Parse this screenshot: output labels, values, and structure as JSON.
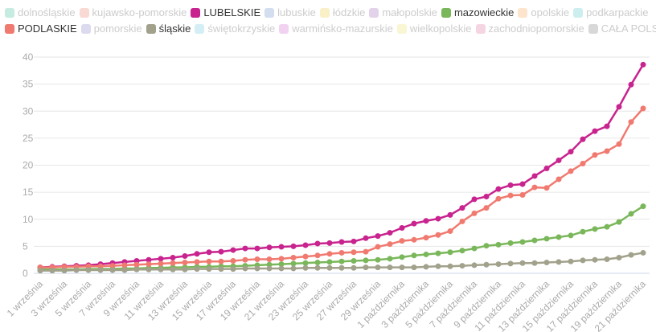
{
  "chart_data": {
    "type": "line",
    "categories": [
      "1 września",
      null,
      "3 września",
      null,
      "5 września",
      null,
      "7 września",
      null,
      "9 września",
      null,
      "11 września",
      null,
      "13 września",
      null,
      "15 września",
      null,
      "17 września",
      null,
      "19 września",
      null,
      "21 września",
      null,
      "23 września",
      null,
      "25 września",
      null,
      "27 września",
      null,
      "29 września",
      null,
      "1 października",
      null,
      "3 października",
      null,
      "5 października",
      null,
      "7 października",
      null,
      "9 października",
      null,
      "11 października",
      null,
      "13 października",
      null,
      "15 października",
      null,
      "17 października",
      null,
      "19 października",
      null,
      "21 października"
    ],
    "ylim": [
      0,
      40
    ],
    "yticks": [
      0,
      5,
      10,
      15,
      20,
      25,
      30,
      35,
      40
    ],
    "grid": true,
    "series": [
      {
        "name": "dolnośląskie",
        "color": "#c6ebe0",
        "visible": false
      },
      {
        "name": "kujawsko-pomorskie",
        "color": "#f9d9d4",
        "visible": false
      },
      {
        "name": "LUBELSKIE",
        "color": "#c8238e",
        "visible": true,
        "values": [
          1.1,
          1.2,
          1.3,
          1.4,
          1.5,
          1.7,
          1.9,
          2.1,
          2.3,
          2.5,
          2.7,
          2.9,
          3.2,
          3.6,
          3.9,
          4.0,
          4.3,
          4.6,
          4.6,
          4.8,
          4.9,
          5.0,
          5.2,
          5.5,
          5.6,
          5.8,
          5.9,
          6.5,
          6.9,
          7.5,
          8.4,
          9.2,
          9.7,
          10.1,
          10.8,
          12.1,
          13.7,
          14.2,
          15.6,
          16.3,
          16.5,
          18.0,
          19.4,
          20.9,
          22.5,
          24.8,
          26.3,
          27.2,
          30.8,
          34.9,
          38.6
        ]
      },
      {
        "name": "lubuskie",
        "color": "#d3def0",
        "visible": false
      },
      {
        "name": "łódzkie",
        "color": "#faf0c8",
        "visible": false
      },
      {
        "name": "małopolskie",
        "color": "#e3d3ea",
        "visible": false
      },
      {
        "name": "mazowieckie",
        "color": "#7ab75a",
        "visible": true,
        "values": [
          0.7,
          0.7,
          0.7,
          0.7,
          0.8,
          0.8,
          0.8,
          0.9,
          0.9,
          1.0,
          1.0,
          1.1,
          1.1,
          1.2,
          1.2,
          1.3,
          1.3,
          1.4,
          1.5,
          1.6,
          1.7,
          1.8,
          1.9,
          2.0,
          2.1,
          2.2,
          2.3,
          2.4,
          2.5,
          2.7,
          3.0,
          3.3,
          3.5,
          3.7,
          3.9,
          4.2,
          4.6,
          5.1,
          5.3,
          5.6,
          5.8,
          6.1,
          6.4,
          6.7,
          7.0,
          7.7,
          8.2,
          8.6,
          9.5,
          11.0,
          12.4
        ]
      },
      {
        "name": "opolskie",
        "color": "#fde4cc",
        "visible": false
      },
      {
        "name": "podkarpackie",
        "color": "#cdeeef",
        "visible": false
      },
      {
        "name": "PODLASKIE",
        "color": "#f07a70",
        "visible": true,
        "values": [
          1.1,
          1.1,
          1.2,
          1.2,
          1.3,
          1.3,
          1.4,
          1.5,
          1.6,
          1.7,
          1.8,
          1.9,
          2.0,
          2.1,
          2.2,
          2.2,
          2.3,
          2.5,
          2.6,
          2.6,
          2.7,
          2.9,
          3.1,
          3.3,
          3.6,
          3.8,
          3.9,
          4.0,
          4.9,
          5.4,
          6.0,
          6.2,
          6.6,
          7.1,
          7.8,
          9.6,
          11.1,
          12.1,
          13.8,
          14.4,
          14.5,
          15.9,
          15.8,
          17.4,
          18.9,
          20.3,
          21.9,
          22.6,
          23.9,
          28.0,
          30.5
        ]
      },
      {
        "name": "pomorskie",
        "color": "#dcdaef",
        "visible": false
      },
      {
        "name": "śląskie",
        "color": "#a2a28c",
        "visible": true,
        "values": [
          0.5,
          0.5,
          0.5,
          0.6,
          0.6,
          0.6,
          0.6,
          0.6,
          0.7,
          0.7,
          0.7,
          0.7,
          0.7,
          0.8,
          0.8,
          0.8,
          0.8,
          0.9,
          0.9,
          0.9,
          0.9,
          0.9,
          1.0,
          1.0,
          1.0,
          1.0,
          1.0,
          1.1,
          1.1,
          1.1,
          1.1,
          1.1,
          1.2,
          1.3,
          1.3,
          1.4,
          1.5,
          1.6,
          1.7,
          1.8,
          1.9,
          1.9,
          2.0,
          2.1,
          2.2,
          2.4,
          2.5,
          2.6,
          2.9,
          3.4,
          3.8
        ]
      },
      {
        "name": "świętokrzyskie",
        "color": "#d3eff5",
        "visible": false
      },
      {
        "name": "warmińsko-mazurskie",
        "color": "#f1d3f1",
        "visible": false
      },
      {
        "name": "wielkopolskie",
        "color": "#f8f6d3",
        "visible": false
      },
      {
        "name": "zachodniopomorskie",
        "color": "#f6d5e3",
        "visible": false
      },
      {
        "name": "CAŁA POLSKA",
        "color": "#d8d8d8",
        "visible": false
      }
    ]
  }
}
